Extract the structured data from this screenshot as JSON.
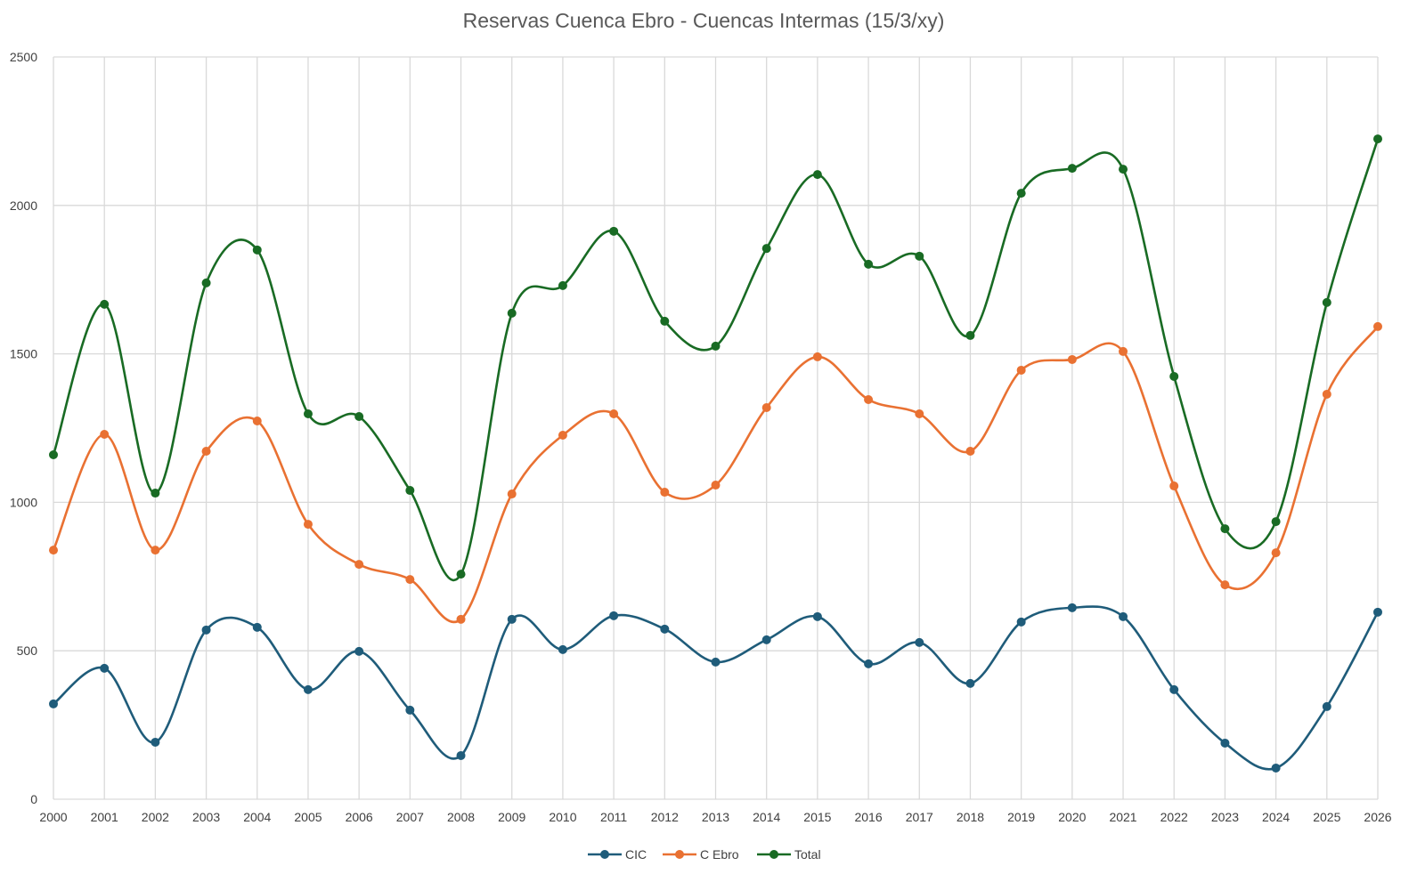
{
  "chart_data": {
    "type": "line",
    "title": "Reservas Cuenca Ebro - Cuencas Intermas (15/3/xy)",
    "xlabel": "",
    "ylabel": "",
    "ylim": [
      0,
      2500
    ],
    "yticks": [
      0,
      500,
      1000,
      1500,
      2000,
      2500
    ],
    "grid": true,
    "smooth": true,
    "legend_position": "bottom",
    "categories": [
      "2000",
      "2001",
      "2002",
      "2003",
      "2004",
      "2005",
      "2006",
      "2007",
      "2008",
      "2009",
      "2010",
      "2011",
      "2012",
      "2013",
      "2014",
      "2015",
      "2016",
      "2017",
      "2018",
      "2019",
      "2020",
      "2021",
      "2022",
      "2023",
      "2024",
      "2025",
      "2026"
    ],
    "series": [
      {
        "name": "CIC",
        "color": "#1F5C7A",
        "values": [
          321,
          441,
          192,
          570,
          579,
          369,
          498,
          300,
          147,
          606,
          504,
          618,
          573,
          462,
          537,
          615,
          456,
          528,
          390,
          597,
          645,
          615,
          369,
          189,
          105,
          312,
          630
        ]
      },
      {
        "name": "C Ebro",
        "color": "#E97132",
        "values": [
          839,
          1229,
          839,
          1172,
          1274,
          926,
          791,
          740,
          606,
          1028,
          1226,
          1298,
          1034,
          1058,
          1319,
          1490,
          1346,
          1298,
          1172,
          1445,
          1481,
          1508,
          1055,
          722,
          830,
          1364,
          1592
        ]
      },
      {
        "name": "Total",
        "color": "#196B24",
        "values": [
          1160,
          1667,
          1031,
          1739,
          1850,
          1298,
          1289,
          1040,
          758,
          1637,
          1730,
          1913,
          1610,
          1526,
          1855,
          2104,
          1802,
          1829,
          1562,
          2041,
          2125,
          2122,
          1424,
          911,
          935,
          1673,
          2224
        ]
      }
    ]
  }
}
